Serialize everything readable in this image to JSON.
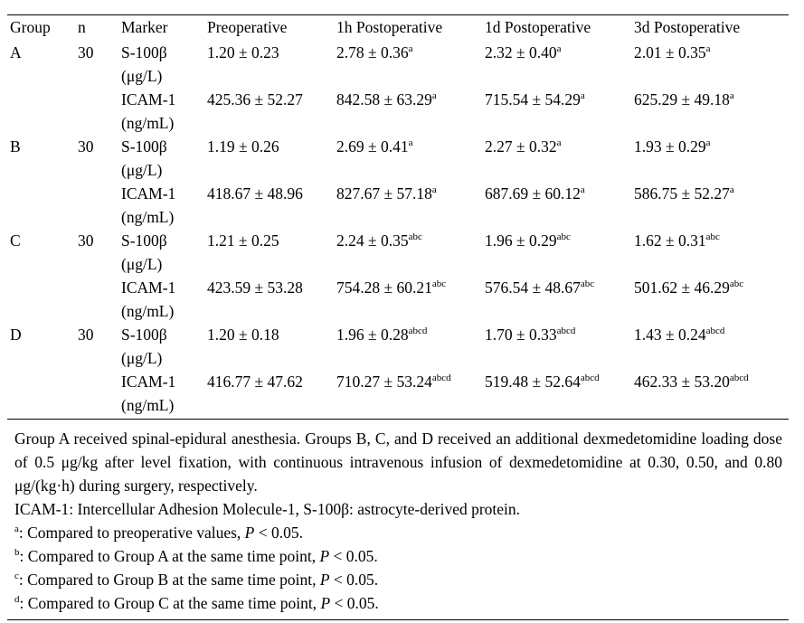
{
  "table": {
    "headers": [
      "Group",
      "n",
      "Marker",
      "Preoperative",
      "1h Postoperative",
      "1d Postoperative",
      "3d Postoperative"
    ],
    "groups": [
      {
        "group": "A",
        "n": "30",
        "rows": [
          {
            "marker": "S-100β",
            "unit": "(μg/L)",
            "values": [
              {
                "v": "1.20 ± 0.23",
                "s": ""
              },
              {
                "v": "2.78 ± 0.36",
                "s": "a"
              },
              {
                "v": "2.32 ± 0.40",
                "s": "a"
              },
              {
                "v": "2.01 ± 0.35",
                "s": "a"
              }
            ]
          },
          {
            "marker": "ICAM-1",
            "unit": "(ng/mL)",
            "values": [
              {
                "v": "425.36 ± 52.27",
                "s": ""
              },
              {
                "v": "842.58 ± 63.29",
                "s": "a"
              },
              {
                "v": "715.54 ± 54.29",
                "s": "a"
              },
              {
                "v": "625.29 ± 49.18",
                "s": "a"
              }
            ]
          }
        ]
      },
      {
        "group": "B",
        "n": "30",
        "rows": [
          {
            "marker": "S-100β",
            "unit": "(μg/L)",
            "values": [
              {
                "v": "1.19 ± 0.26",
                "s": ""
              },
              {
                "v": "2.69 ± 0.41",
                "s": "a"
              },
              {
                "v": "2.27 ± 0.32",
                "s": "a"
              },
              {
                "v": "1.93 ± 0.29",
                "s": "a"
              }
            ]
          },
          {
            "marker": "ICAM-1",
            "unit": "(ng/mL)",
            "values": [
              {
                "v": "418.67 ± 48.96",
                "s": ""
              },
              {
                "v": "827.67 ± 57.18",
                "s": "a"
              },
              {
                "v": "687.69 ± 60.12",
                "s": "a"
              },
              {
                "v": "586.75 ± 52.27",
                "s": "a"
              }
            ]
          }
        ]
      },
      {
        "group": "C",
        "n": "30",
        "rows": [
          {
            "marker": "S-100β",
            "unit": "(μg/L)",
            "values": [
              {
                "v": "1.21 ± 0.25",
                "s": ""
              },
              {
                "v": "2.24 ± 0.35",
                "s": "abc"
              },
              {
                "v": "1.96 ± 0.29",
                "s": "abc"
              },
              {
                "v": "1.62 ± 0.31",
                "s": "abc"
              }
            ]
          },
          {
            "marker": "ICAM-1",
            "unit": "(ng/mL)",
            "values": [
              {
                "v": "423.59 ± 53.28",
                "s": ""
              },
              {
                "v": "754.28 ± 60.21",
                "s": "abc"
              },
              {
                "v": "576.54 ± 48.67",
                "s": "abc"
              },
              {
                "v": "501.62 ± 46.29",
                "s": "abc"
              }
            ]
          }
        ]
      },
      {
        "group": "D",
        "n": "30",
        "rows": [
          {
            "marker": "S-100β",
            "unit": "(μg/L)",
            "values": [
              {
                "v": "1.20 ± 0.18",
                "s": ""
              },
              {
                "v": "1.96 ± 0.28",
                "s": "abcd"
              },
              {
                "v": "1.70 ± 0.33",
                "s": "abcd"
              },
              {
                "v": "1.43 ± 0.24",
                "s": "abcd"
              }
            ]
          },
          {
            "marker": "ICAM-1",
            "unit": "(ng/mL)",
            "values": [
              {
                "v": "416.77 ± 47.62",
                "s": ""
              },
              {
                "v": "710.27 ± 53.24",
                "s": "abcd"
              },
              {
                "v": "519.48 ± 52.64",
                "s": "abcd"
              },
              {
                "v": "462.33 ± 53.20",
                "s": "abcd"
              }
            ]
          }
        ]
      }
    ]
  },
  "notes": {
    "description": "Group A received spinal-epidural anesthesia. Groups B, C, and D received an additional dexmedetomidine loading dose of 0.5 μg/kg after level fixation, with continuous intravenous infusion of dexmedetomidine at 0.30, 0.50, and 0.80 μg/(kg·h) during surgery, respectively.",
    "abbreviations": "ICAM-1: Intercellular Adhesion Molecule-1, S-100β: astrocyte-derived protein.",
    "footnotes": [
      {
        "mark": "a",
        "pre": ": Compared to preoperative values, ",
        "p": "P",
        "post": " < 0.05."
      },
      {
        "mark": "b",
        "pre": ": Compared to Group A at the same time point, ",
        "p": "P",
        "post": " < 0.05."
      },
      {
        "mark": "c",
        "pre": ": Compared to Group B at the same time point, ",
        "p": "P",
        "post": " < 0.05."
      },
      {
        "mark": "d",
        "pre": ": Compared to Group C at the same time point, ",
        "p": "P",
        "post": " < 0.05."
      }
    ]
  }
}
